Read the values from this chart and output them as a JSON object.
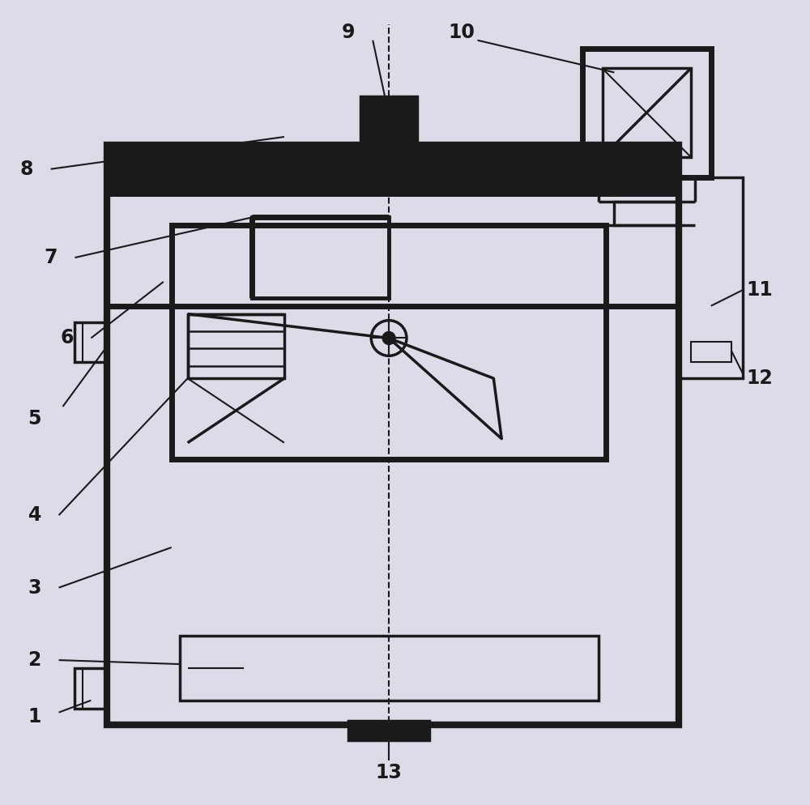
{
  "bg_color": "#dcdce8",
  "line_color": "#1a1a1a",
  "lw_thick": 5.0,
  "lw_med": 2.5,
  "lw_thin": 1.5,
  "lw_vthin": 1.0
}
